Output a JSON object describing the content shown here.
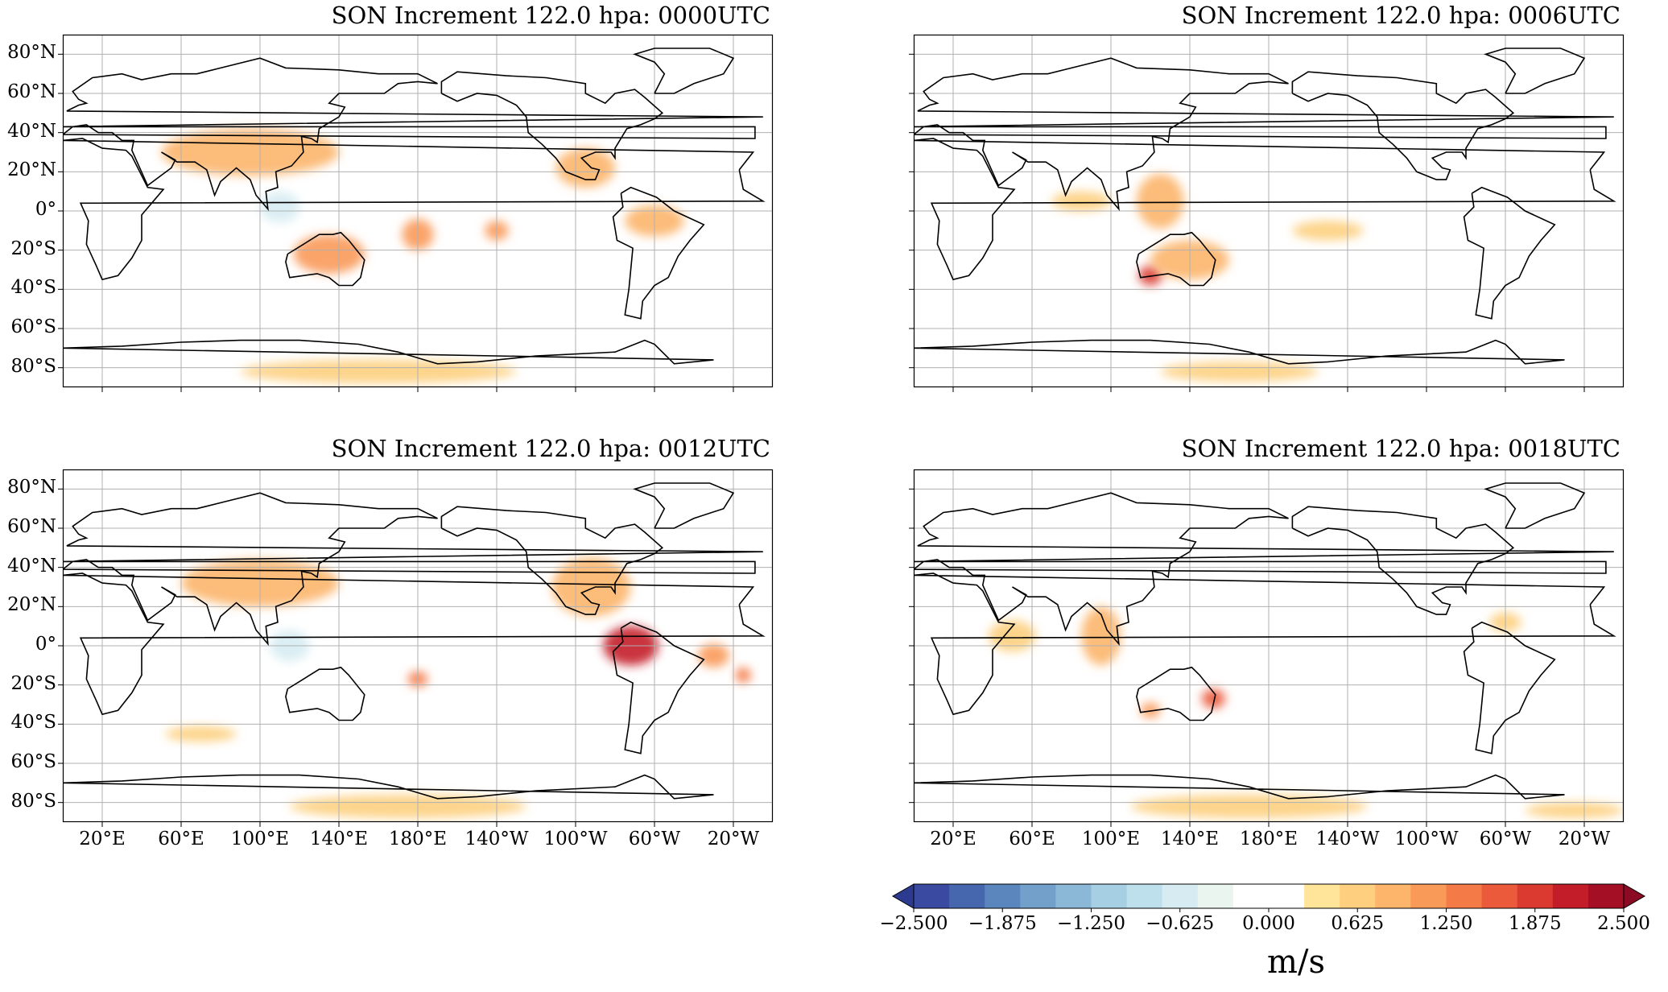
{
  "panels": [
    {
      "title": "SON Increment 122.0 hpa: 0000UTC",
      "show_x_labels": false,
      "show_y_labels": true
    },
    {
      "title": "SON Increment 122.0 hpa: 0006UTC",
      "show_x_labels": false,
      "show_y_labels": false
    },
    {
      "title": "SON Increment 122.0 hpa: 0012UTC",
      "show_x_labels": true,
      "show_y_labels": true
    },
    {
      "title": "SON Increment 122.0 hpa: 0018UTC",
      "show_x_labels": true,
      "show_y_labels": false
    }
  ],
  "lat_labels": [
    "80°N",
    "60°N",
    "40°N",
    "20°N",
    "0°",
    "20°S",
    "40°S",
    "60°S",
    "80°S"
  ],
  "lon_labels": [
    "20°E",
    "60°E",
    "100°E",
    "140°E",
    "180°E",
    "140°W",
    "100°W",
    "60°W",
    "20°W"
  ],
  "colorbar": {
    "tick_labels": [
      "−2.500",
      "−1.875",
      "−1.250",
      "−0.625",
      "0.000",
      "0.625",
      "1.250",
      "1.875",
      "2.500"
    ],
    "unit": "m/s",
    "colors": [
      "#3a4aa0",
      "#4666ad",
      "#5a86bd",
      "#739fcb",
      "#8cb8d8",
      "#a6cfe3",
      "#bee0ec",
      "#d6ecf2",
      "#ebf5f0",
      "#ffffff",
      "#ffffff",
      "#fee59a",
      "#fdcf7e",
      "#fcb56b",
      "#f99a59",
      "#f47a48",
      "#ea5a3b",
      "#da3a30",
      "#c41d2a",
      "#a50f26"
    ],
    "colors_note": "diverging blue-white-red"
  },
  "chart_data": {
    "type": "heatmap",
    "variable_unit": "m/s",
    "projection": "plate carree, central longitude 180",
    "lat_range": [
      -90,
      90
    ],
    "lon_ticks_deg_east": [
      20,
      60,
      100,
      140,
      180,
      220,
      260,
      300,
      340
    ],
    "color_range": [
      -2.5,
      2.5
    ],
    "levels_step": 0.25,
    "grid": true,
    "maps": [
      {
        "time": "0000UTC",
        "features": [
          {
            "lon": 95,
            "lat": 30,
            "value": 0.9,
            "rlon": 45,
            "rlat": 12
          },
          {
            "lon": 135,
            "lat": -22,
            "value": 1.2,
            "rlon": 18,
            "rlat": 10
          },
          {
            "lon": 110,
            "lat": 2,
            "value": -0.6,
            "rlon": 10,
            "rlat": 8
          },
          {
            "lon": 180,
            "lat": -12,
            "value": 1.0,
            "rlon": 8,
            "rlat": 8
          },
          {
            "lon": 220,
            "lat": -10,
            "value": 1.0,
            "rlon": 6,
            "rlat": 5
          },
          {
            "lon": 265,
            "lat": 22,
            "value": 0.9,
            "rlon": 15,
            "rlat": 10
          },
          {
            "lon": 300,
            "lat": -5,
            "value": 0.8,
            "rlon": 15,
            "rlat": 8
          },
          {
            "lon": 160,
            "lat": -82,
            "value": 0.5,
            "rlon": 70,
            "rlat": 6
          }
        ]
      },
      {
        "time": "0006UTC",
        "features": [
          {
            "lon": 125,
            "lat": 5,
            "value": 0.9,
            "rlon": 12,
            "rlat": 14
          },
          {
            "lon": 120,
            "lat": -33,
            "value": 1.8,
            "rlon": 6,
            "rlat": 5
          },
          {
            "lon": 140,
            "lat": -25,
            "value": 0.8,
            "rlon": 20,
            "rlat": 10
          },
          {
            "lon": 85,
            "lat": 5,
            "value": 0.6,
            "rlon": 15,
            "rlat": 5
          },
          {
            "lon": 210,
            "lat": -10,
            "value": 0.5,
            "rlon": 18,
            "rlat": 5
          },
          {
            "lon": 165,
            "lat": -82,
            "value": 0.5,
            "rlon": 40,
            "rlat": 5
          }
        ]
      },
      {
        "time": "0012UTC",
        "features": [
          {
            "lon": 100,
            "lat": 32,
            "value": 0.8,
            "rlon": 40,
            "rlat": 12
          },
          {
            "lon": 288,
            "lat": 0,
            "value": 2.2,
            "rlon": 14,
            "rlat": 10
          },
          {
            "lon": 115,
            "lat": 0,
            "value": -0.7,
            "rlon": 10,
            "rlat": 8
          },
          {
            "lon": 180,
            "lat": -17,
            "value": 1.4,
            "rlon": 5,
            "rlat": 4
          },
          {
            "lon": 330,
            "lat": -5,
            "value": 1.2,
            "rlon": 8,
            "rlat": 6
          },
          {
            "lon": 345,
            "lat": -15,
            "value": 1.3,
            "rlon": 4,
            "rlat": 4
          },
          {
            "lon": 268,
            "lat": 30,
            "value": 0.8,
            "rlon": 20,
            "rlat": 15
          },
          {
            "lon": 70,
            "lat": -45,
            "value": 0.6,
            "rlon": 18,
            "rlat": 4
          },
          {
            "lon": 175,
            "lat": -82,
            "value": 0.5,
            "rlon": 60,
            "rlat": 6
          }
        ]
      },
      {
        "time": "0018UTC",
        "features": [
          {
            "lon": 152,
            "lat": -27,
            "value": 1.5,
            "rlon": 6,
            "rlat": 5
          },
          {
            "lon": 120,
            "lat": -33,
            "value": 1.0,
            "rlon": 5,
            "rlat": 4
          },
          {
            "lon": 95,
            "lat": 5,
            "value": 0.8,
            "rlon": 10,
            "rlat": 15
          },
          {
            "lon": 50,
            "lat": 5,
            "value": 0.6,
            "rlon": 12,
            "rlat": 8
          },
          {
            "lon": 300,
            "lat": 12,
            "value": 0.5,
            "rlon": 8,
            "rlat": 5
          },
          {
            "lon": 170,
            "lat": -82,
            "value": 0.5,
            "rlon": 60,
            "rlat": 6
          },
          {
            "lon": 335,
            "lat": -84,
            "value": 0.5,
            "rlon": 25,
            "rlat": 4
          }
        ]
      }
    ]
  }
}
